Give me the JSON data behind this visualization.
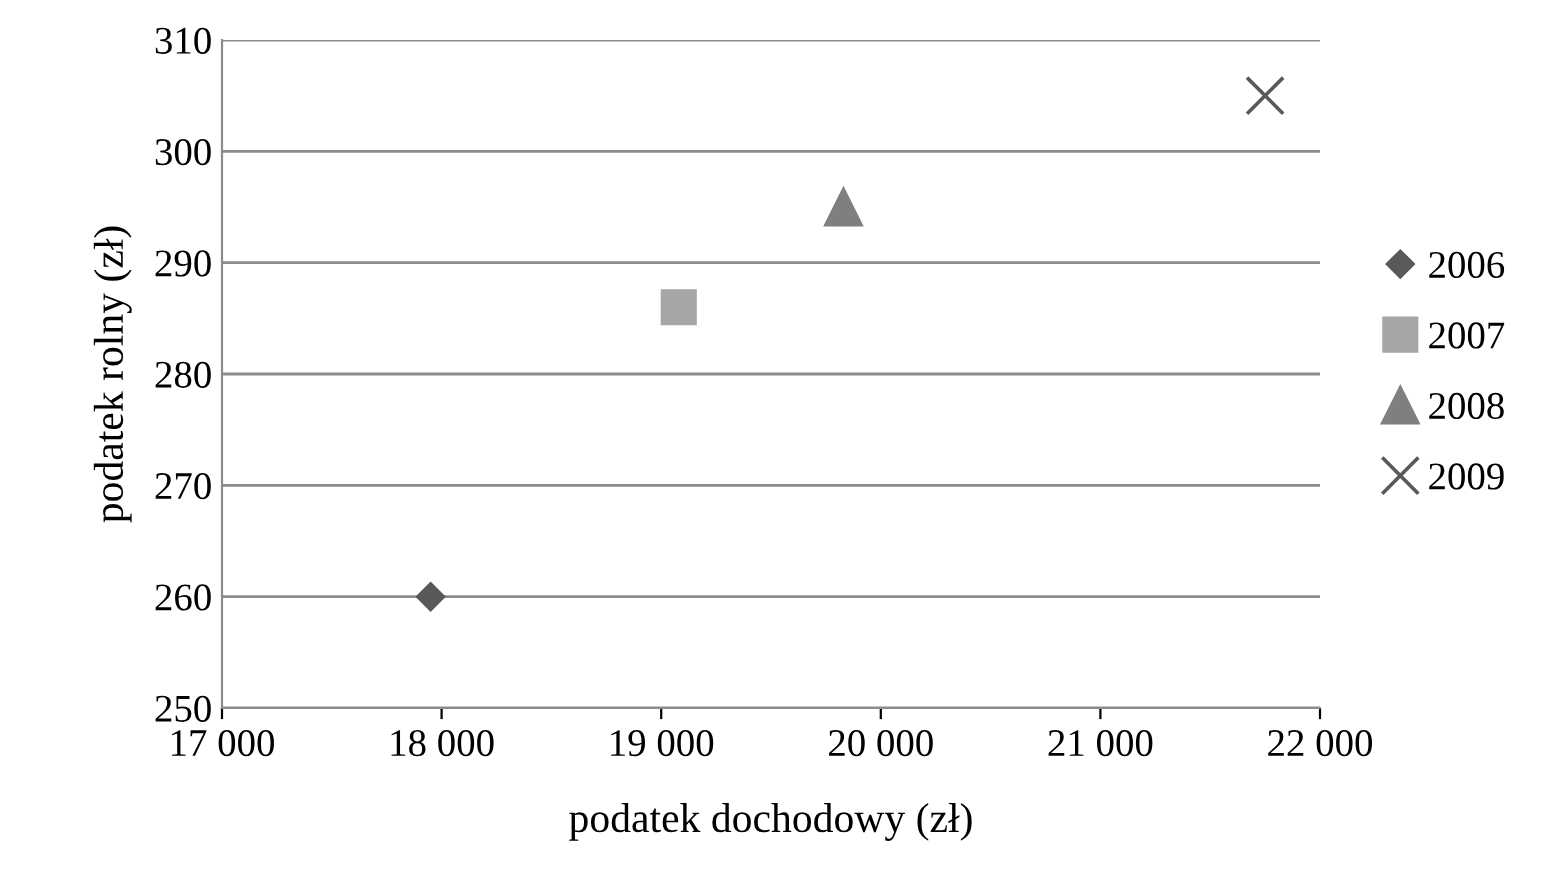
{
  "chart_data": {
    "type": "scatter",
    "xlabel": "podatek dochodowy (zł)",
    "ylabel": "podatek rolny (zł)",
    "xlim": [
      17000,
      22000
    ],
    "xticks": [
      {
        "value": 17000,
        "label": "17 000"
      },
      {
        "value": 18000,
        "label": "18 000"
      },
      {
        "value": 19000,
        "label": "19 000"
      },
      {
        "value": 20000,
        "label": "20 000"
      },
      {
        "value": 21000,
        "label": "21 000"
      },
      {
        "value": 22000,
        "label": "22 000"
      }
    ],
    "ylim": [
      250,
      310
    ],
    "yticks": [
      250,
      260,
      270,
      280,
      290,
      300,
      310
    ],
    "grid": "y",
    "legend": "right",
    "series": [
      {
        "name": "2006",
        "color": "#595959",
        "marker": "diamond",
        "x": [
          17950
        ],
        "values": [
          260
        ]
      },
      {
        "name": "2007",
        "color": "#a6a6a6",
        "marker": "square",
        "x": [
          19080
        ],
        "values": [
          286
        ]
      },
      {
        "name": "2008",
        "color": "#7f7f7f",
        "marker": "triangle",
        "x": [
          19830
        ],
        "values": [
          295
        ]
      },
      {
        "name": "2009",
        "color": "#595959",
        "marker": "cross",
        "x": [
          21750
        ],
        "values": [
          305
        ]
      }
    ]
  }
}
